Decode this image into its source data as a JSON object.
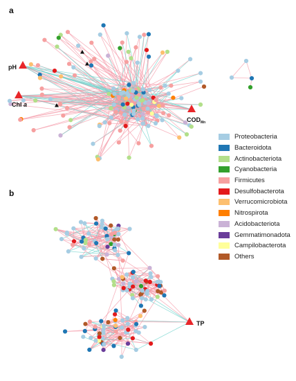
{
  "panels": {
    "a": {
      "label": "a",
      "env": {
        "ph": {
          "text": "pH"
        },
        "chla": {
          "text": "Chl",
          "italic": "a"
        },
        "cod": {
          "text": "COD",
          "subscript": "Mn"
        }
      }
    },
    "b": {
      "label": "b",
      "env": {
        "tp": {
          "text": "TP"
        }
      }
    }
  },
  "edge_colors": {
    "positive": "#f49aa8",
    "negative": "#6fd3cc"
  },
  "marker_colors": {
    "environmental_factor": "#e8262a",
    "unlabelled_node": "#111111"
  },
  "legend": [
    {
      "label": "Proteobacteria",
      "color": "#a6cde3"
    },
    {
      "label": "Bacteroidota",
      "color": "#1f77b4"
    },
    {
      "label": "Actinobacteriota",
      "color": "#b2df8a"
    },
    {
      "label": "Cyanobacteria",
      "color": "#33a02c"
    },
    {
      "label": "Firmicutes",
      "color": "#f6a0a0"
    },
    {
      "label": "Desulfobacterota",
      "color": "#e31a1c"
    },
    {
      "label": "Verrucomicrobiota",
      "color": "#fdbf6f"
    },
    {
      "label": "Nitrospirota",
      "color": "#ff7f00"
    },
    {
      "label": "Acidobacteriota",
      "color": "#cab2d6"
    },
    {
      "label": "Gemmatimonadota",
      "color": "#6a3d9a"
    },
    {
      "label": "Campilobacterota",
      "color": "#ffff99"
    },
    {
      "label": "Others",
      "color": "#b15928"
    }
  ]
}
